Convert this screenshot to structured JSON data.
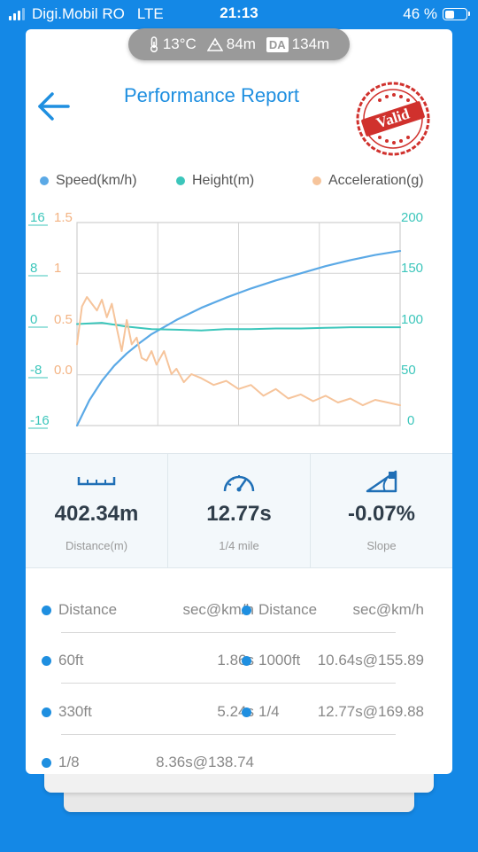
{
  "status": {
    "carrier": "Digi.Mobil RO",
    "network": "LTE",
    "time": "21:13",
    "battery": "46 %",
    "battery_level": 0.46
  },
  "conditions": {
    "temperature": "13°C",
    "altitude": "84m",
    "da_label": "DA",
    "density_altitude": "134m"
  },
  "header": {
    "title": "Performance Report",
    "stamp_text": "Valid"
  },
  "legend": [
    {
      "label": "Speed(km/h)",
      "color": "#5ba9e6"
    },
    {
      "label": "Height(m)",
      "color": "#3cc6bb"
    },
    {
      "label": "Acceleration(g)",
      "color": "#f6c49b"
    }
  ],
  "chart_data": {
    "type": "line",
    "y_left_height_ticks": [
      "16",
      "8",
      "0",
      "-8",
      "-16"
    ],
    "y_left_accel_ticks": [
      "1.5",
      "1",
      "0.5",
      "0.0"
    ],
    "y_right_speed_ticks": [
      "200",
      "150",
      "100",
      "50",
      "0"
    ],
    "xlim": [
      0,
      13
    ],
    "grid": true,
    "series": [
      {
        "name": "Speed(km/h)",
        "axis": "right",
        "ylim": [
          0,
          200
        ],
        "color": "#5ba9e6",
        "x": [
          0,
          0.5,
          1,
          1.5,
          2,
          2.5,
          3,
          3.5,
          4,
          5,
          6,
          7,
          8,
          9,
          10,
          11,
          12,
          13
        ],
        "y": [
          0,
          25,
          44,
          59,
          71,
          81,
          90,
          97,
          104,
          116,
          126,
          135,
          143,
          150,
          157,
          163,
          168,
          172
        ]
      },
      {
        "name": "Height(m)",
        "axis": "left",
        "ylim": [
          -16,
          16
        ],
        "color": "#3cc6bb",
        "x": [
          0,
          1,
          2,
          3,
          4,
          5,
          6,
          7,
          8,
          9,
          10,
          11,
          12,
          13
        ],
        "y": [
          0,
          0.2,
          -0.4,
          -0.8,
          -0.9,
          -1.0,
          -0.8,
          -0.8,
          -0.7,
          -0.7,
          -0.6,
          -0.5,
          -0.5,
          -0.5
        ]
      },
      {
        "name": "Acceleration(g)",
        "axis": "left",
        "ylim": [
          0,
          1.5
        ],
        "color": "#f6c49b",
        "x": [
          0,
          0.2,
          0.4,
          0.6,
          0.8,
          1.0,
          1.2,
          1.4,
          1.6,
          1.8,
          2.0,
          2.2,
          2.4,
          2.6,
          2.8,
          3.0,
          3.2,
          3.5,
          3.8,
          4.0,
          4.3,
          4.6,
          5.0,
          5.5,
          6.0,
          6.5,
          7.0,
          7.5,
          8.0,
          8.5,
          9.0,
          9.5,
          10.0,
          10.5,
          11.0,
          11.5,
          12.0,
          12.5,
          13.0
        ],
        "y": [
          0.6,
          0.88,
          0.95,
          0.9,
          0.85,
          0.93,
          0.8,
          0.9,
          0.72,
          0.55,
          0.78,
          0.6,
          0.65,
          0.5,
          0.48,
          0.55,
          0.45,
          0.55,
          0.38,
          0.42,
          0.32,
          0.38,
          0.35,
          0.3,
          0.33,
          0.27,
          0.3,
          0.22,
          0.27,
          0.2,
          0.23,
          0.18,
          0.22,
          0.17,
          0.2,
          0.15,
          0.19,
          0.17,
          0.15
        ]
      }
    ]
  },
  "stats": [
    {
      "value": "402.34m",
      "label": "Distance(m)"
    },
    {
      "value": "12.77s",
      "label": "1/4 mile"
    },
    {
      "value": "-0.07%",
      "label": "Slope"
    }
  ],
  "results": {
    "headers": [
      {
        "name": "Distance",
        "value": "sec@km/h"
      },
      {
        "name": "Distance",
        "value": "sec@km/h"
      }
    ],
    "rows": [
      [
        {
          "name": "60ft",
          "value": "1.86s"
        },
        {
          "name": "1000ft",
          "value": "10.64s@155.89"
        }
      ],
      [
        {
          "name": "330ft",
          "value": "5.24s"
        },
        {
          "name": "1/4",
          "value": "12.77s@169.88"
        }
      ],
      [
        {
          "name": "1/8",
          "value": "8.36s@138.74"
        },
        null
      ]
    ]
  }
}
